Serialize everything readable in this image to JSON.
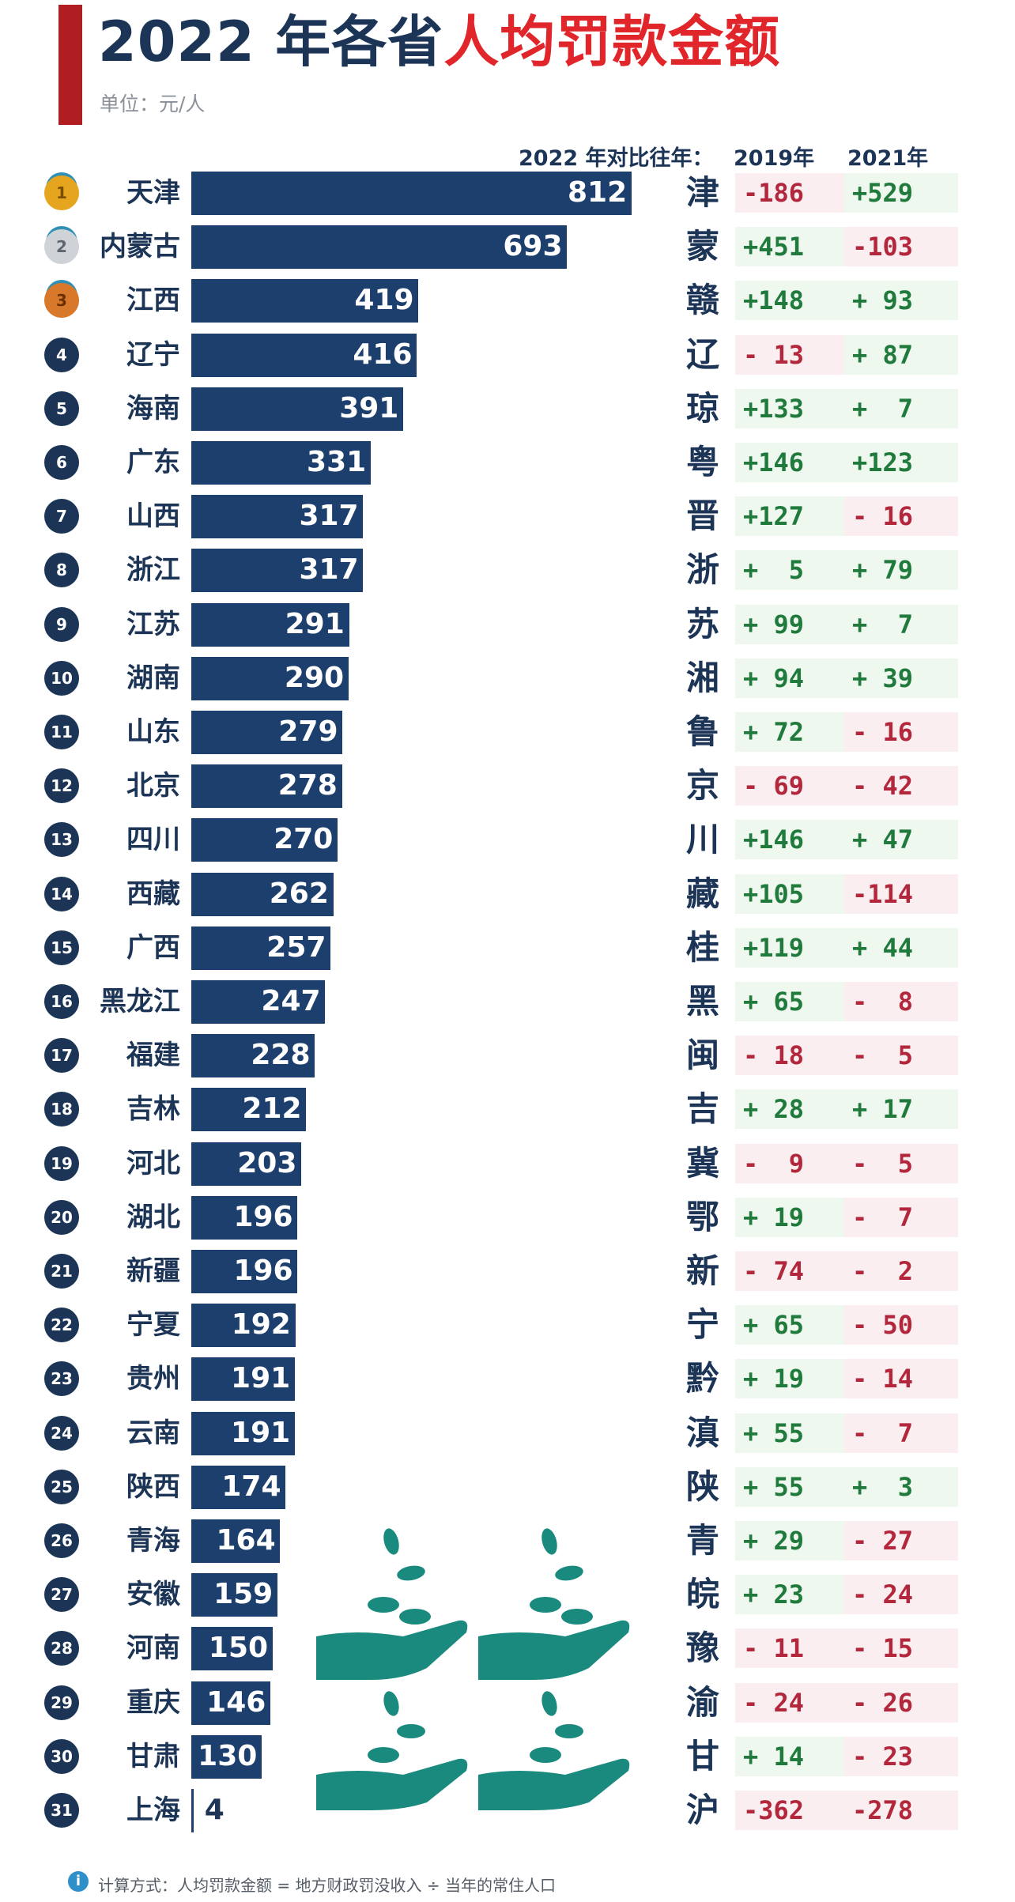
{
  "header": {
    "title_part1": "2022 年各省",
    "title_part2": "人均罚款金额",
    "unit": "单位：元/人",
    "compare_label": "2022 年对比往年：",
    "col_2019": "2019年",
    "col_2021": "2021年"
  },
  "footer": {
    "note": "计算方式：人均罚款金额 = 地方财政罚没收入 ÷ 当年的常住人口"
  },
  "colors": {
    "bar": "#1d3f6e",
    "title_accent": "#e0262a",
    "negative": "#b2273b",
    "positive": "#1f7a3c"
  },
  "chart_data": {
    "type": "bar",
    "orientation": "horizontal",
    "title": "2022 年各省人均罚款金额",
    "unit": "元/人",
    "xlim": [
      0,
      812
    ],
    "rows": [
      {
        "rank": "1",
        "province": "天津",
        "value": 812,
        "abbr": "津",
        "d2019": "-186",
        "d2021": "+529"
      },
      {
        "rank": "2",
        "province": "内蒙古",
        "value": 693,
        "abbr": "蒙",
        "d2019": "+451",
        "d2021": "-103"
      },
      {
        "rank": "3",
        "province": "江西",
        "value": 419,
        "abbr": "赣",
        "d2019": "+148",
        "d2021": "+ 93"
      },
      {
        "rank": "4",
        "province": "辽宁",
        "value": 416,
        "abbr": "辽",
        "d2019": "- 13",
        "d2021": "+ 87"
      },
      {
        "rank": "5",
        "province": "海南",
        "value": 391,
        "abbr": "琼",
        "d2019": "+133",
        "d2021": "+  7"
      },
      {
        "rank": "6",
        "province": "广东",
        "value": 331,
        "abbr": "粤",
        "d2019": "+146",
        "d2021": "+123"
      },
      {
        "rank": "7",
        "province": "山西",
        "value": 317,
        "abbr": "晋",
        "d2019": "+127",
        "d2021": "- 16"
      },
      {
        "rank": "8",
        "province": "浙江",
        "value": 317,
        "abbr": "浙",
        "d2019": "+  5",
        "d2021": "+ 79"
      },
      {
        "rank": "9",
        "province": "江苏",
        "value": 291,
        "abbr": "苏",
        "d2019": "+ 99",
        "d2021": "+  7"
      },
      {
        "rank": "10",
        "province": "湖南",
        "value": 290,
        "abbr": "湘",
        "d2019": "+ 94",
        "d2021": "+ 39"
      },
      {
        "rank": "11",
        "province": "山东",
        "value": 279,
        "abbr": "鲁",
        "d2019": "+ 72",
        "d2021": "- 16"
      },
      {
        "rank": "12",
        "province": "北京",
        "value": 278,
        "abbr": "京",
        "d2019": "- 69",
        "d2021": "- 42"
      },
      {
        "rank": "13",
        "province": "四川",
        "value": 270,
        "abbr": "川",
        "d2019": "+146",
        "d2021": "+ 47"
      },
      {
        "rank": "14",
        "province": "西藏",
        "value": 262,
        "abbr": "藏",
        "d2019": "+105",
        "d2021": "-114"
      },
      {
        "rank": "15",
        "province": "广西",
        "value": 257,
        "abbr": "桂",
        "d2019": "+119",
        "d2021": "+ 44"
      },
      {
        "rank": "16",
        "province": "黑龙江",
        "value": 247,
        "abbr": "黑",
        "d2019": "+ 65",
        "d2021": "-  8"
      },
      {
        "rank": "17",
        "province": "福建",
        "value": 228,
        "abbr": "闽",
        "d2019": "- 18",
        "d2021": "-  5"
      },
      {
        "rank": "18",
        "province": "吉林",
        "value": 212,
        "abbr": "吉",
        "d2019": "+ 28",
        "d2021": "+ 17"
      },
      {
        "rank": "19",
        "province": "河北",
        "value": 203,
        "abbr": "冀",
        "d2019": "-  9",
        "d2021": "-  5"
      },
      {
        "rank": "20",
        "province": "湖北",
        "value": 196,
        "abbr": "鄂",
        "d2019": "+ 19",
        "d2021": "-  7"
      },
      {
        "rank": "21",
        "province": "新疆",
        "value": 196,
        "abbr": "新",
        "d2019": "- 74",
        "d2021": "-  2"
      },
      {
        "rank": "22",
        "province": "宁夏",
        "value": 192,
        "abbr": "宁",
        "d2019": "+ 65",
        "d2021": "- 50"
      },
      {
        "rank": "23",
        "province": "贵州",
        "value": 191,
        "abbr": "黔",
        "d2019": "+ 19",
        "d2021": "- 14"
      },
      {
        "rank": "24",
        "province": "云南",
        "value": 191,
        "abbr": "滇",
        "d2019": "+ 55",
        "d2021": "-  7"
      },
      {
        "rank": "25",
        "province": "陕西",
        "value": 174,
        "abbr": "陕",
        "d2019": "+ 55",
        "d2021": "+  3"
      },
      {
        "rank": "26",
        "province": "青海",
        "value": 164,
        "abbr": "青",
        "d2019": "+ 29",
        "d2021": "- 27"
      },
      {
        "rank": "27",
        "province": "安徽",
        "value": 159,
        "abbr": "皖",
        "d2019": "+ 23",
        "d2021": "- 24"
      },
      {
        "rank": "28",
        "province": "河南",
        "value": 150,
        "abbr": "豫",
        "d2019": "- 11",
        "d2021": "- 15"
      },
      {
        "rank": "29",
        "province": "重庆",
        "value": 146,
        "abbr": "渝",
        "d2019": "- 24",
        "d2021": "- 26"
      },
      {
        "rank": "30",
        "province": "甘肃",
        "value": 130,
        "abbr": "甘",
        "d2019": "+ 14",
        "d2021": "- 23"
      },
      {
        "rank": "31",
        "province": "上海",
        "value": 4,
        "abbr": "沪",
        "d2019": "-362",
        "d2021": "-278"
      }
    ]
  }
}
